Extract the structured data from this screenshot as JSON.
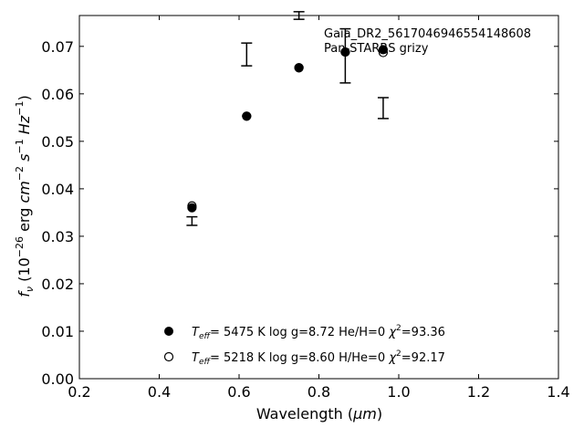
{
  "chart_data": {
    "type": "scatter",
    "title": "",
    "xlabel_main": "Wavelength (",
    "xlabel_unit": "μm",
    "xlabel_close": ")",
    "ylabel": "f_ν (10^-26 erg cm^-2 s^-1 Hz^-1)",
    "xlim": [
      0.2,
      1.4
    ],
    "ylim": [
      0.0,
      0.0765
    ],
    "xticks": [
      0.2,
      0.4,
      0.6,
      0.8,
      1.0,
      1.2,
      1.4
    ],
    "xtick_labels": [
      "0.2",
      "0.4",
      "0.6",
      "0.8",
      "1.0",
      "1.2",
      "1.4"
    ],
    "yticks": [
      0.0,
      0.01,
      0.02,
      0.03,
      0.04,
      0.05,
      0.06,
      0.07
    ],
    "ytick_labels": [
      "0.00",
      "0.01",
      "0.02",
      "0.03",
      "0.04",
      "0.05",
      "0.06",
      "0.07"
    ],
    "annotation_lines": [
      "Gaia_DR2_5617046946554148608",
      "Pan-STARRS grizy"
    ],
    "observed": [
      {
        "x": 0.482,
        "y": 0.0332,
        "err": 0.0009
      },
      {
        "x": 0.619,
        "y": 0.0683,
        "err": 0.0024
      },
      {
        "x": 0.75,
        "y": 0.0765,
        "err": 0.0008
      },
      {
        "x": 0.866,
        "y": 0.068,
        "err": 0.0057
      },
      {
        "x": 0.961,
        "y": 0.057,
        "err": 0.0022
      }
    ],
    "series": [
      {
        "marker": "filled",
        "points": [
          {
            "x": 0.482,
            "y": 0.036
          },
          {
            "x": 0.619,
            "y": 0.0553
          },
          {
            "x": 0.75,
            "y": 0.0655
          },
          {
            "x": 0.866,
            "y": 0.0688
          },
          {
            "x": 0.961,
            "y": 0.0693
          }
        ]
      },
      {
        "marker": "open",
        "points": [
          {
            "x": 0.482,
            "y": 0.0364
          },
          {
            "x": 0.619,
            "y": 0.0553
          },
          {
            "x": 0.75,
            "y": 0.0655
          },
          {
            "x": 0.866,
            "y": 0.0688
          },
          {
            "x": 0.961,
            "y": 0.0687
          }
        ]
      }
    ],
    "legend": {
      "placement": "lower-center",
      "entries": [
        {
          "marker": "filled",
          "teff": "5475 K",
          "logg": "log g=8.72",
          "comp": "He/H=0",
          "chi2": "=93.36"
        },
        {
          "marker": "open",
          "teff": "5218 K",
          "logg": "log g=8.60",
          "comp": "H/He=0",
          "chi2": "=92.17"
        }
      ]
    }
  }
}
